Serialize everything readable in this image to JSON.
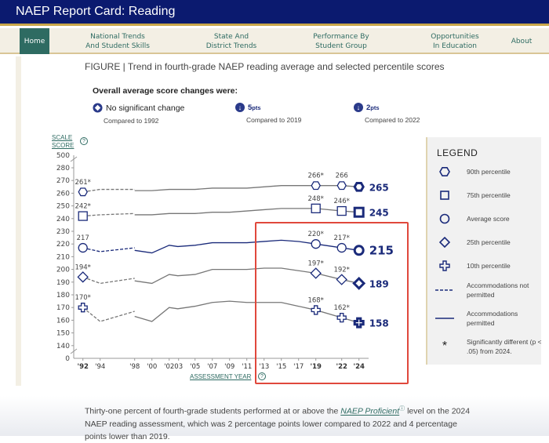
{
  "app_title": "NAEP Report Card: Reading",
  "nav": [
    {
      "label": "Home"
    },
    {
      "label": "National Trends\nAnd Student Skills"
    },
    {
      "label": "State And\nDistrict Trends"
    },
    {
      "label": "Performance By\nStudent Group"
    },
    {
      "label": "Opportunities\nIn Education"
    },
    {
      "label": "About"
    }
  ],
  "figure": {
    "prefix": "FIGURE |",
    "title": "Trend in fourth-grade NAEP reading average and selected percentile scores"
  },
  "overall": {
    "heading": "Overall average score changes were:",
    "items": [
      {
        "icon": "no-change-diamond-icon",
        "value": "No significant change",
        "unit": "",
        "compared": "Compared to 1992"
      },
      {
        "icon": "down-arrow-icon",
        "value": "5",
        "unit": "pts",
        "compared": "Compared to 2019"
      },
      {
        "icon": "down-arrow-icon",
        "value": "2",
        "unit": "pts",
        "compared": "Compared to 2022"
      }
    ]
  },
  "legend": {
    "title": "LEGEND",
    "items": [
      "90th percentile",
      "75th percentile",
      "Average score",
      "25th percentile",
      "10th percentile",
      "Accommodations not permitted",
      "Accommodations permitted",
      "Significantly different (p < .05) from 2024."
    ]
  },
  "paragraph": {
    "before": "Thirty-one percent of fourth-grade students performed at or above the ",
    "link": "NAEP Proficient",
    "after": " level on the 2024 NAEP reading assessment, which was 2 percentage points lower compared to 2022 and 4 percentage points lower than 2019."
  },
  "colors": {
    "navy": "#0b1a6f",
    "teal": "#2e6b62",
    "highlight": "#e0483c",
    "line": "#777777",
    "avg": "#1a2a7a"
  },
  "chart_data": {
    "type": "line",
    "ylabel": "SCALE SCORE",
    "xlabel": "ASSESSMENT YEAR",
    "yticks": [
      140,
      150,
      160,
      170,
      180,
      190,
      200,
      210,
      220,
      230,
      240,
      250,
      260,
      270,
      280
    ],
    "ybreak_ticks": [
      "0",
      "500"
    ],
    "ylim": [
      140,
      280
    ],
    "xticks": [
      {
        "year": 1992,
        "label": "'92",
        "bold": true
      },
      {
        "year": 1994,
        "label": "'94"
      },
      {
        "year": 1998,
        "label": "'98"
      },
      {
        "year": 2000,
        "label": "'00"
      },
      {
        "year": 2002,
        "label": "'02"
      },
      {
        "year": 2003,
        "label": "03"
      },
      {
        "year": 2005,
        "label": "'05"
      },
      {
        "year": 2007,
        "label": "'07"
      },
      {
        "year": 2009,
        "label": "'09"
      },
      {
        "year": 2011,
        "label": "'11"
      },
      {
        "year": 2013,
        "label": "'13"
      },
      {
        "year": 2015,
        "label": "'15"
      },
      {
        "year": 2017,
        "label": "'17"
      },
      {
        "year": 2019,
        "label": "'19",
        "bold": true
      },
      {
        "year": 2022,
        "label": "'22",
        "bold": true
      },
      {
        "year": 2024,
        "label": "'24",
        "bold": true
      }
    ],
    "series": [
      {
        "name": "90th percentile",
        "marker": "hexagon",
        "not_permitted": [
          [
            1992,
            261
          ],
          [
            1994,
            263
          ],
          [
            1998,
            263
          ]
        ],
        "permitted": [
          [
            1998,
            262
          ],
          [
            2000,
            262
          ],
          [
            2002,
            263
          ],
          [
            2003,
            263
          ],
          [
            2005,
            263
          ],
          [
            2007,
            264
          ],
          [
            2009,
            264
          ],
          [
            2011,
            264
          ],
          [
            2013,
            265
          ],
          [
            2015,
            266
          ],
          [
            2017,
            266
          ],
          [
            2019,
            266
          ],
          [
            2022,
            266
          ],
          [
            2024,
            265
          ]
        ],
        "labels": [
          {
            "year": 1992,
            "value": 261,
            "text": "261*"
          },
          {
            "year": 2019,
            "value": 266,
            "text": "266*"
          },
          {
            "year": 2022,
            "value": 266,
            "text": "266"
          },
          {
            "year": 2024,
            "value": 265,
            "text": "265",
            "final": true
          }
        ]
      },
      {
        "name": "75th percentile",
        "marker": "square",
        "not_permitted": [
          [
            1992,
            242
          ],
          [
            1994,
            243
          ],
          [
            1998,
            244
          ]
        ],
        "permitted": [
          [
            1998,
            243
          ],
          [
            2000,
            243
          ],
          [
            2002,
            244
          ],
          [
            2003,
            244
          ],
          [
            2005,
            244
          ],
          [
            2007,
            245
          ],
          [
            2009,
            245
          ],
          [
            2011,
            246
          ],
          [
            2013,
            247
          ],
          [
            2015,
            248
          ],
          [
            2017,
            248
          ],
          [
            2019,
            248
          ],
          [
            2022,
            246
          ],
          [
            2024,
            245
          ]
        ],
        "labels": [
          {
            "year": 1992,
            "value": 242,
            "text": "242*"
          },
          {
            "year": 2019,
            "value": 248,
            "text": "248*"
          },
          {
            "year": 2022,
            "value": 246,
            "text": "246*"
          },
          {
            "year": 2024,
            "value": 245,
            "text": "245",
            "final": true
          }
        ]
      },
      {
        "name": "Average score",
        "marker": "circle",
        "not_permitted": [
          [
            1992,
            217
          ],
          [
            1994,
            214
          ],
          [
            1998,
            217
          ]
        ],
        "permitted": [
          [
            1998,
            215
          ],
          [
            2000,
            213
          ],
          [
            2002,
            219
          ],
          [
            2003,
            218
          ],
          [
            2005,
            219
          ],
          [
            2007,
            221
          ],
          [
            2009,
            221
          ],
          [
            2011,
            221
          ],
          [
            2013,
            222
          ],
          [
            2015,
            223
          ],
          [
            2017,
            222
          ],
          [
            2019,
            220
          ],
          [
            2022,
            217
          ],
          [
            2024,
            215
          ]
        ],
        "labels": [
          {
            "year": 1992,
            "value": 217,
            "text": "217"
          },
          {
            "year": 2019,
            "value": 220,
            "text": "220*"
          },
          {
            "year": 2022,
            "value": 217,
            "text": "217*"
          },
          {
            "year": 2024,
            "value": 215,
            "text": "215",
            "final": true
          }
        ]
      },
      {
        "name": "25th percentile",
        "marker": "diamond",
        "not_permitted": [
          [
            1992,
            194
          ],
          [
            1994,
            189
          ],
          [
            1998,
            193
          ]
        ],
        "permitted": [
          [
            1998,
            191
          ],
          [
            2000,
            189
          ],
          [
            2002,
            196
          ],
          [
            2003,
            195
          ],
          [
            2005,
            196
          ],
          [
            2007,
            200
          ],
          [
            2009,
            200
          ],
          [
            2011,
            200
          ],
          [
            2013,
            201
          ],
          [
            2015,
            201
          ],
          [
            2017,
            199
          ],
          [
            2019,
            197
          ],
          [
            2022,
            192
          ],
          [
            2024,
            189
          ]
        ],
        "labels": [
          {
            "year": 1992,
            "value": 194,
            "text": "194*"
          },
          {
            "year": 2019,
            "value": 197,
            "text": "197*"
          },
          {
            "year": 2022,
            "value": 192,
            "text": "192*"
          },
          {
            "year": 2024,
            "value": 189,
            "text": "189",
            "final": true
          }
        ]
      },
      {
        "name": "10th percentile",
        "marker": "cross",
        "not_permitted": [
          [
            1992,
            170
          ],
          [
            1994,
            159
          ],
          [
            1998,
            167
          ]
        ],
        "permitted": [
          [
            1998,
            163
          ],
          [
            2000,
            159
          ],
          [
            2002,
            170
          ],
          [
            2003,
            169
          ],
          [
            2005,
            171
          ],
          [
            2007,
            174
          ],
          [
            2009,
            175
          ],
          [
            2011,
            174
          ],
          [
            2013,
            174
          ],
          [
            2015,
            174
          ],
          [
            2017,
            171
          ],
          [
            2019,
            168
          ],
          [
            2022,
            162
          ],
          [
            2024,
            158
          ]
        ],
        "labels": [
          {
            "year": 1992,
            "value": 170,
            "text": "170*"
          },
          {
            "year": 2019,
            "value": 168,
            "text": "168*"
          },
          {
            "year": 2022,
            "value": 162,
            "text": "162*"
          },
          {
            "year": 2024,
            "value": 158,
            "text": "158",
            "final": true
          }
        ]
      }
    ]
  }
}
